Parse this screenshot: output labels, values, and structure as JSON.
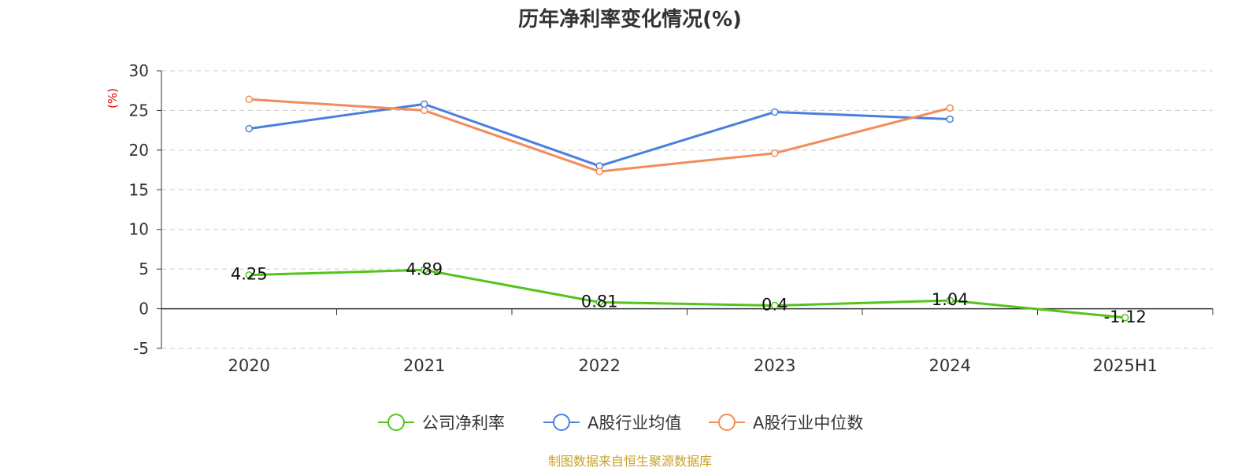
{
  "source_note": "制图数据来自恒生聚源数据库",
  "colors": {
    "company": "#52c41a",
    "industry_avg": "#4a7fde",
    "industry_median": "#f28c5a",
    "source": "#c9a227",
    "ylabel": "#e00000",
    "grid": "#cccccc",
    "axis": "#333333"
  },
  "chart_data": {
    "type": "line",
    "title": "历年净利率变化情况(%)",
    "ylabel": "(%)",
    "xlabel": "",
    "categories": [
      "2020",
      "2021",
      "2022",
      "2023",
      "2024",
      "2025H1"
    ],
    "y_ticks": [
      "30",
      "25",
      "20",
      "15",
      "10",
      "5",
      "0",
      "-5"
    ],
    "ylim": [
      -5,
      30
    ],
    "grid": true,
    "legend_position": "bottom-center",
    "series": [
      {
        "name": "公司净利率",
        "color_key": "company",
        "values": [
          4.25,
          4.89,
          0.81,
          0.4,
          1.04,
          -1.12
        ],
        "labels": [
          "4.25",
          "4.89",
          "0.81",
          "0.4",
          "1.04",
          "-1.12"
        ]
      },
      {
        "name": "A股行业均值",
        "color_key": "industry_avg",
        "values": [
          22.7,
          25.8,
          18.0,
          24.8,
          23.9,
          null
        ]
      },
      {
        "name": "A股行业中位数",
        "color_key": "industry_median",
        "values": [
          26.4,
          25.0,
          17.3,
          19.6,
          25.3,
          null
        ]
      }
    ]
  }
}
